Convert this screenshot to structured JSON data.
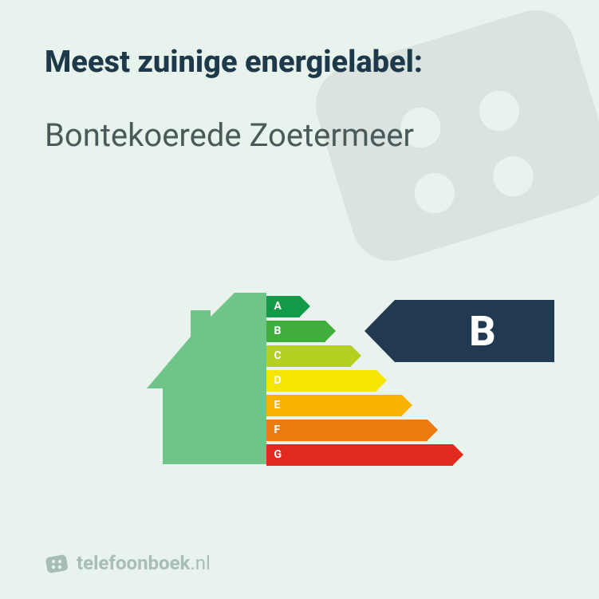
{
  "title": "Meest zuinige energielabel:",
  "subtitle": "Bontekoerede Zoetermeer",
  "rating": {
    "value": "B",
    "badge_bg": "#213a52",
    "badge_text_color": "#ffffff",
    "badge_fontsize": 52,
    "badge_height": 78,
    "badge_top_offset": 1
  },
  "colors": {
    "page_bg": "#e9f3ee",
    "title_color": "#1e3a4a",
    "subtitle_color": "#4a5a5a",
    "house_fill": "#6fc588",
    "watermark_opacity": 0.06
  },
  "bars": {
    "height": 27,
    "gap": 4,
    "base_width": 42,
    "width_step": 32,
    "label_fontsize": 14,
    "items": [
      {
        "label": "A",
        "color": "#129a46"
      },
      {
        "label": "B",
        "color": "#3fae3b"
      },
      {
        "label": "C",
        "color": "#b4cf1f"
      },
      {
        "label": "D",
        "color": "#f5e500"
      },
      {
        "label": "E",
        "color": "#f7b100"
      },
      {
        "label": "F",
        "color": "#ed7a0f"
      },
      {
        "label": "G",
        "color": "#e22a1f"
      }
    ]
  },
  "footer": {
    "brand_bold": "telefoonboek",
    "brand_light": ".nl",
    "color": "#a8beb4",
    "icon_fill": "#a8beb4"
  },
  "typography": {
    "title_fontsize": 38,
    "title_weight": 800,
    "subtitle_fontsize": 40,
    "subtitle_weight": 400,
    "footer_fontsize": 24
  }
}
